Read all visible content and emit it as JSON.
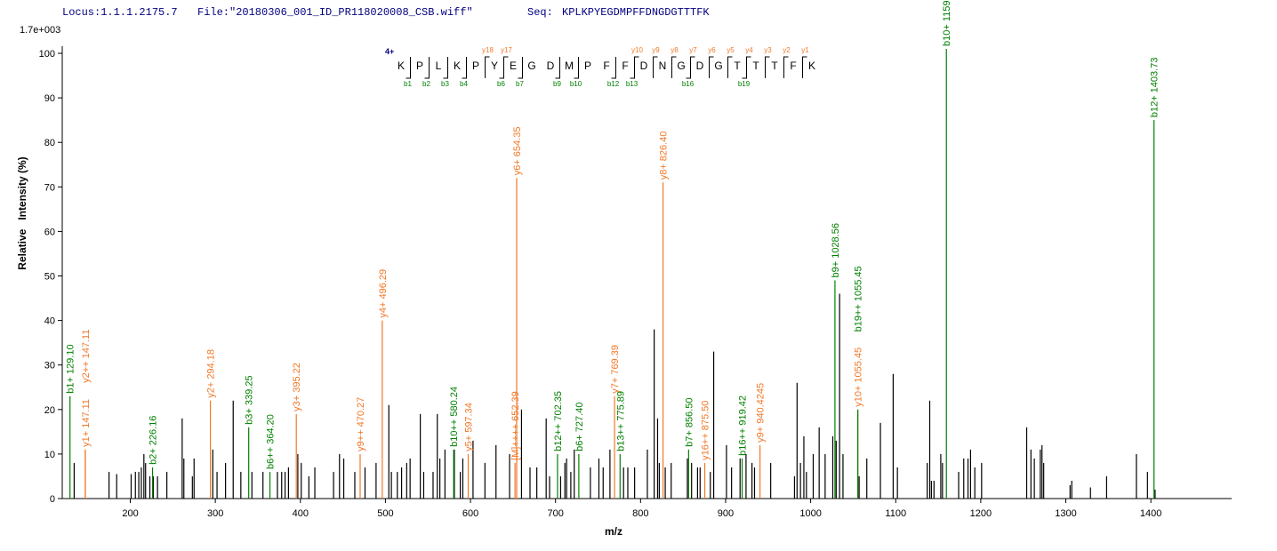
{
  "header": {
    "locus": "Locus:1.1.1.2175.7",
    "file": "File:\"20180306_001_ID_PR118020008_CSB.wiff\"",
    "seq_label": "Seq:",
    "seq": "KPLKPYEGDMPFFDNGDGTTTFK"
  },
  "chart_data": {
    "type": "spectrum",
    "scale_label": "1.7e+003",
    "xlabel": "m/z",
    "ylabel": "Relative   Intensity (%)",
    "xlim": [
      120,
      1495
    ],
    "ylim": [
      0,
      101.7
    ],
    "xticks": [
      200,
      300,
      400,
      500,
      600,
      700,
      800,
      900,
      1000,
      1100,
      1200,
      1300,
      1400
    ],
    "yticks": [
      0,
      10,
      20,
      30,
      40,
      50,
      60,
      70,
      80,
      90,
      100
    ],
    "fragment_map": {
      "charge": "4+",
      "residues": [
        "K",
        "P",
        "L",
        "K",
        "P",
        "Y",
        "E",
        "G",
        "D",
        "M",
        "P",
        "F",
        "F",
        "D",
        "N",
        "G",
        "D",
        "G",
        "T",
        "T",
        "T",
        "F",
        "K"
      ],
      "b_ions": [
        "b1",
        "b2",
        "b3",
        "b4",
        "b6",
        "b7",
        "b9",
        "b10",
        "b12",
        "b13",
        "b16",
        "b19"
      ],
      "y_ions": [
        "y17",
        "y18",
        "y10",
        "y9",
        "y8",
        "y7",
        "y6",
        "y5",
        "y4",
        "y3",
        "y2",
        "y1"
      ]
    },
    "series": [
      {
        "color": "#000000",
        "x": [
          134,
          175,
          184,
          201,
          206,
          210,
          213,
          216,
          218,
          223,
          227,
          232,
          243,
          261,
          263,
          273,
          275,
          297,
          302,
          312,
          321,
          330,
          343,
          356,
          373,
          378,
          382,
          386,
          397,
          401,
          410,
          417,
          439,
          446,
          451,
          464,
          476,
          489,
          504,
          507,
          514,
          519,
          525,
          529,
          541,
          545,
          556,
          561,
          564,
          570,
          581,
          588,
          591,
          603,
          617,
          630,
          646,
          660,
          670,
          678,
          689,
          693,
          706,
          711,
          713,
          718,
          722,
          741,
          751,
          756,
          764,
          780,
          785,
          793,
          808,
          816,
          820,
          822,
          829,
          836,
          855,
          860,
          867,
          870,
          882,
          886,
          901,
          907,
          917,
          924,
          931,
          934,
          953,
          981,
          984,
          988,
          992,
          995,
          1003,
          1010,
          1017,
          1026,
          1030,
          1034,
          1038,
          1057,
          1066,
          1082,
          1097,
          1102,
          1137,
          1140,
          1142,
          1145,
          1153,
          1155,
          1174,
          1180,
          1185,
          1188,
          1193,
          1201,
          1254,
          1259,
          1263,
          1270,
          1272,
          1274,
          1305,
          1307,
          1329,
          1348,
          1383,
          1396,
          1405
        ],
        "values": [
          8,
          6,
          5.5,
          5.5,
          6,
          6,
          7,
          10,
          8,
          5,
          5,
          5,
          6,
          18,
          9,
          5,
          9,
          11,
          6,
          8,
          22,
          6,
          6,
          6,
          6,
          6,
          6,
          7,
          10,
          8,
          5,
          7,
          6,
          10,
          9,
          6,
          7,
          8,
          21,
          6,
          6,
          7,
          8,
          9,
          19,
          6,
          6,
          19,
          9,
          11,
          11,
          6,
          9,
          13,
          8,
          12,
          10,
          20,
          7,
          7,
          18,
          5,
          5,
          8,
          9,
          6,
          11,
          7,
          9,
          7,
          11,
          7,
          7,
          7,
          11,
          38,
          18,
          8,
          7,
          8,
          9,
          8,
          7,
          7,
          6,
          33,
          12,
          7,
          9,
          10,
          8,
          7,
          8,
          5,
          26,
          8,
          14,
          6,
          10,
          16,
          10,
          14,
          13,
          46,
          10,
          5,
          9,
          17,
          28,
          7,
          8,
          22,
          4,
          4,
          10,
          8,
          6,
          9,
          9,
          11,
          7,
          8,
          16,
          11,
          9,
          11,
          12,
          8,
          3,
          4,
          2.5,
          5,
          10,
          6,
          2
        ]
      },
      {
        "color": "#f07828",
        "x": [
          147.11,
          147.11,
          294.18,
          395.22,
          470.27,
          496.29,
          597.34,
          652.39,
          654.35,
          769.39,
          826.4,
          875.5,
          940.4245,
          1055.45
        ],
        "values": [
          11,
          11,
          22,
          19,
          10,
          40,
          10,
          8,
          72,
          23,
          71,
          8,
          12,
          20
        ],
        "labels": [
          "y1+ 147.11",
          "y2++ 147.11",
          "y2+ 294.18",
          "y3+ 395.22",
          "y9++ 470.27",
          "y4+ 496.29",
          "y5+ 597.34",
          "[M]++++ 652.39",
          "y6+ 654.35",
          "y7+ 769.39",
          "y8+ 826.40",
          "y16++ 875.50",
          "y9+ 940.4245",
          "y10+ 1055.45"
        ]
      },
      {
        "color": "#008000",
        "x": [
          129.1,
          226.16,
          339.25,
          364.2,
          580.24,
          702.35,
          727.4,
          775.89,
          856.5,
          919.42,
          1028.56,
          1055.45,
          1159.6,
          1403.73
        ],
        "values": [
          23,
          7,
          16,
          6,
          11,
          10,
          10,
          10,
          11,
          9,
          49,
          20,
          101,
          85
        ],
        "labels": [
          "b1+ 129.10",
          "b2+ 226.16",
          "b3+ 339.25",
          "b6++ 364.20",
          "b10++ 580.24",
          "b12++ 702.35",
          "b6+ 727.40",
          "b13++ 775.89",
          "b7+ 856.50",
          "b16++ 919.42",
          "b9+ 1028.56",
          "b19++ 1055.45",
          "b10+ 1159.60",
          "b12+ 1403.73"
        ]
      }
    ]
  }
}
